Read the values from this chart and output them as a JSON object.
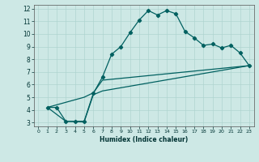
{
  "title": "",
  "xlabel": "Humidex (Indice chaleur)",
  "bg_color": "#cde8e5",
  "grid_color": "#afd4d0",
  "line_color": "#006060",
  "xlim": [
    -0.5,
    23.5
  ],
  "ylim": [
    2.7,
    12.3
  ],
  "xticks": [
    0,
    1,
    2,
    3,
    4,
    5,
    6,
    7,
    8,
    9,
    10,
    11,
    12,
    13,
    14,
    15,
    16,
    17,
    18,
    19,
    20,
    21,
    22,
    23
  ],
  "yticks": [
    3,
    4,
    5,
    6,
    7,
    8,
    9,
    10,
    11,
    12
  ],
  "line1_x": [
    1,
    2,
    3,
    4,
    5,
    6,
    7,
    8,
    9,
    10,
    11,
    12,
    13,
    14,
    15,
    16,
    17,
    18,
    19,
    20,
    21,
    22,
    23
  ],
  "line1_y": [
    4.2,
    4.2,
    3.1,
    3.1,
    3.1,
    5.3,
    6.6,
    8.4,
    9.0,
    10.1,
    11.1,
    11.85,
    11.5,
    11.85,
    11.6,
    10.2,
    9.7,
    9.1,
    9.2,
    8.9,
    9.1,
    8.5,
    7.5
  ],
  "line2_x": [
    1,
    5,
    6,
    7,
    23
  ],
  "line2_y": [
    4.2,
    5.0,
    5.35,
    6.35,
    7.5
  ],
  "line3_x": [
    1,
    3,
    5,
    6,
    7,
    23
  ],
  "line3_y": [
    4.2,
    3.1,
    3.05,
    5.2,
    5.5,
    7.5
  ]
}
